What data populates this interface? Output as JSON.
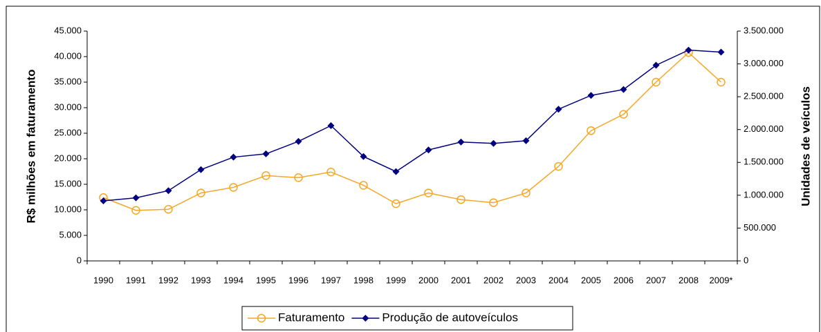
{
  "chart_data": {
    "type": "line",
    "y_label": "R$ milhões em faturamento",
    "y2_label": "Unidades de veículos",
    "categories": [
      "1990",
      "1991",
      "1992",
      "1993",
      "1994",
      "1995",
      "1996",
      "1997",
      "1998",
      "1999",
      "2000",
      "2001",
      "2002",
      "2003",
      "2004",
      "2005",
      "2006",
      "2007",
      "2008",
      "2009*"
    ],
    "series": [
      {
        "name": "Faturamento",
        "color": "#f5a623",
        "marker": "circle",
        "axis": "y",
        "values": [
          12400,
          9900,
          10100,
          13300,
          14400,
          16700,
          16300,
          17400,
          14800,
          11200,
          13300,
          12000,
          11400,
          13300,
          18500,
          25500,
          28700,
          35000,
          40800,
          35000
        ]
      },
      {
        "name": "Produção de autoveículos",
        "color": "#000080",
        "marker": "diamond",
        "axis": "y2",
        "values": [
          914000,
          960000,
          1070000,
          1390000,
          1580000,
          1630000,
          1820000,
          2060000,
          1590000,
          1360000,
          1690000,
          1810000,
          1790000,
          1830000,
          2310000,
          2520000,
          2610000,
          2980000,
          3210000,
          3180000
        ]
      }
    ],
    "ylim": [
      0,
      45000
    ],
    "yticks": [
      0,
      {
        "value": 5000,
        "label": "5.000"
      },
      {
        "value": 10000,
        "label": "10.000"
      },
      {
        "value": 15000,
        "label": "15.000"
      },
      {
        "value": 20000,
        "label": "20.000"
      },
      {
        "value": 25000,
        "label": "25.000"
      },
      {
        "value": 30000,
        "label": "30.000"
      },
      {
        "value": 35000,
        "label": "35.000"
      },
      {
        "value": 40000,
        "label": "40.000"
      },
      {
        "value": 45000,
        "label": "45.000"
      }
    ],
    "y2lim": [
      0,
      3500000
    ],
    "y2ticks": [
      0,
      {
        "value": 500000,
        "label": "500.000"
      },
      {
        "value": 1000000,
        "label": "1.000.000"
      },
      {
        "value": 1500000,
        "label": "1.500.000"
      },
      {
        "value": 2000000,
        "label": "2.000.000"
      },
      {
        "value": 2500000,
        "label": "2.500.000"
      },
      {
        "value": 3000000,
        "label": "3.000.000"
      },
      {
        "value": 3500000,
        "label": "3.500.000"
      }
    ],
    "legend": "bottom"
  }
}
